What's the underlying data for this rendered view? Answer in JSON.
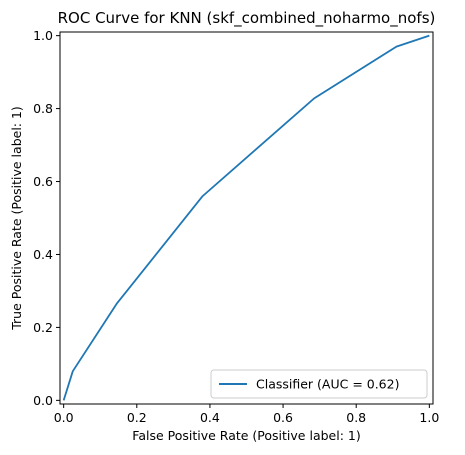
{
  "chart_data": {
    "type": "line",
    "title": "ROC Curve for KNN (skf_combined_noharmo_nofs)",
    "xlabel": "False Positive Rate (Positive label: 1)",
    "ylabel": "True Positive Rate (Positive label: 1)",
    "xlim": [
      -0.01,
      1.01
    ],
    "ylim": [
      -0.01,
      1.01
    ],
    "xticks": [
      "0.0",
      "0.2",
      "0.4",
      "0.6",
      "0.8",
      "1.0"
    ],
    "yticks": [
      "0.0",
      "0.2",
      "0.4",
      "0.6",
      "0.8",
      "1.0"
    ],
    "grid": false,
    "legend_position": "lower-right",
    "series": [
      {
        "name": "Classifier (AUC = 0.62)",
        "color": "#1f77b4",
        "x": [
          0.0,
          0.025,
          0.145,
          0.38,
          0.685,
          0.91,
          1.0
        ],
        "y": [
          0.0,
          0.08,
          0.265,
          0.56,
          0.828,
          0.97,
          1.0
        ]
      }
    ]
  }
}
